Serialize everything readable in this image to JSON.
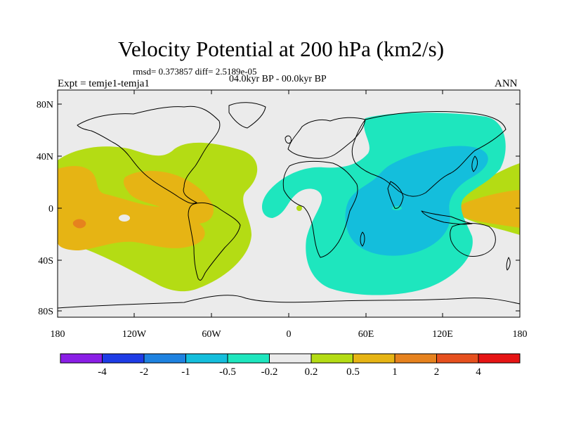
{
  "title": "Velocity Potential at 200 hPa (km2/s)",
  "rmsd_line": "rmsd= 0.373857 diff= 2.5189e-05",
  "period": "04.0kyr BP - 00.0kyr BP",
  "experiment": "Expt = temje1-temja1",
  "season": "ANN",
  "lat_ticks": [
    "80N",
    "40N",
    "0",
    "40S",
    "80S"
  ],
  "lon_ticks": [
    "180",
    "120W",
    "60W",
    "0",
    "60E",
    "120E",
    "180"
  ],
  "colorbar": {
    "labels": [
      "-4",
      "-2",
      "-1",
      "-0.5",
      "-0.2",
      "0.2",
      "0.5",
      "1",
      "2",
      "4"
    ],
    "colors": [
      "#8a1ee6",
      "#1e3ce6",
      "#1e82e0",
      "#14bedc",
      "#1ee6be",
      "#ebebeb",
      "#b4dc14",
      "#e6b414",
      "#e6821e",
      "#e6501e",
      "#e61414"
    ]
  },
  "palette": {
    "background": "#ebebeb",
    "positive_weak": "#b4dc14",
    "positive_mid": "#e6b414",
    "positive_strong": "#e6821e",
    "negative_weak": "#1ee6be",
    "negative_mid": "#14bedc"
  }
}
